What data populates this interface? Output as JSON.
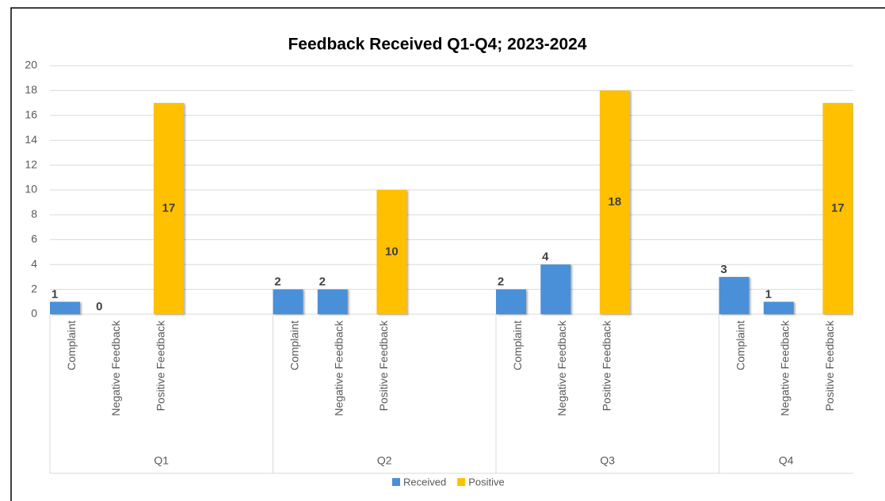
{
  "chart_data": {
    "type": "bar",
    "title": "Feedback Received Q1-Q4; 2023-2024",
    "groups": [
      "Q1",
      "Q2",
      "Q3",
      "Q4"
    ],
    "categories": [
      "Complaint",
      "Negative Feedback",
      "Positive Feedback",
      "Complaint",
      "Negative Feedback",
      "Positive Feedback",
      "Complaint",
      "Negative Feedback",
      "Positive Feedback",
      "Complaint",
      "Negative Feedback",
      "Positive Feedback"
    ],
    "series": [
      {
        "name": "Received",
        "color": "#4a90d9",
        "values": [
          1,
          0,
          null,
          2,
          2,
          null,
          2,
          4,
          null,
          3,
          1,
          null
        ]
      },
      {
        "name": "Positive",
        "color": "#ffc000",
        "values": [
          null,
          null,
          17,
          null,
          null,
          10,
          null,
          null,
          18,
          null,
          null,
          17
        ]
      }
    ],
    "ylim": [
      0,
      20
    ],
    "yticks": [
      0,
      2,
      4,
      6,
      8,
      10,
      12,
      14,
      16,
      18,
      20
    ],
    "grid": true,
    "legend": "bottom"
  }
}
